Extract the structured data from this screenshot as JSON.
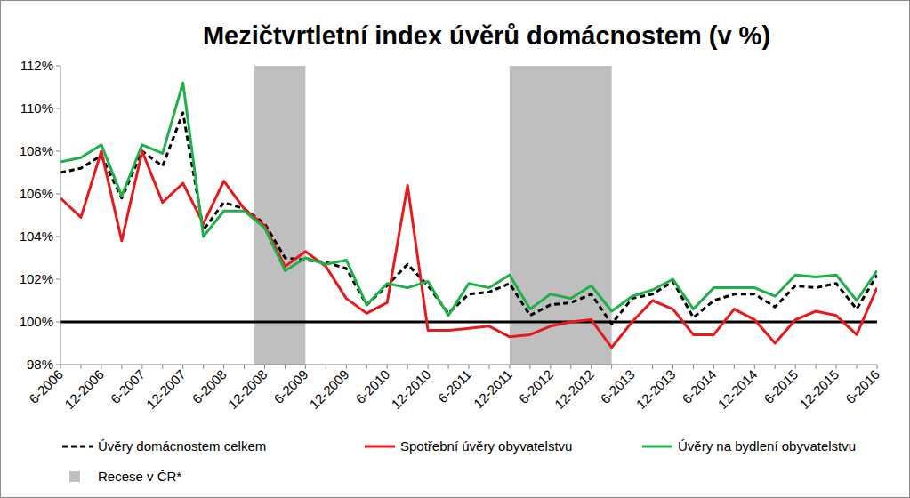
{
  "chart_data": {
    "type": "line",
    "title": "Mezičtvrtletní index úvěrů domácnostem (v %)",
    "categories": [
      "6-2006",
      null,
      "12-2006",
      null,
      "6-2007",
      null,
      "12-2007",
      null,
      "6-2008",
      null,
      "12-2008",
      null,
      "6-2009",
      null,
      "12-2009",
      null,
      "6-2010",
      null,
      "12-2010",
      null,
      "6-2011",
      null,
      "12-2011",
      null,
      "6-2012",
      null,
      "12-2012",
      null,
      "6-2013",
      null,
      "12-2013",
      null,
      "6-2014",
      null,
      "12-2014",
      null,
      "6-2015",
      null,
      "12-2015",
      null,
      "6-2016"
    ],
    "series": [
      {
        "name": "Úvěry domácnostem celkem",
        "color": "#000000",
        "line_style": "dashed",
        "values": [
          107.0,
          107.2,
          107.8,
          105.8,
          108.0,
          107.3,
          109.8,
          104.3,
          105.6,
          105.3,
          104.6,
          103.0,
          102.9,
          102.8,
          102.5,
          100.8,
          101.7,
          102.7,
          101.7,
          100.4,
          101.3,
          101.4,
          101.8,
          100.3,
          100.8,
          100.9,
          101.3,
          99.9,
          101.1,
          101.3,
          101.9,
          100.2,
          101.0,
          101.3,
          101.3,
          100.7,
          101.7,
          101.6,
          101.8,
          100.6,
          102.2
        ]
      },
      {
        "name": "Spotřební úvěry obyvatelstvu",
        "color": "#e8191b",
        "line_style": "solid",
        "values": [
          105.8,
          104.9,
          108.0,
          103.8,
          108.0,
          105.6,
          106.5,
          104.6,
          106.6,
          105.3,
          104.5,
          102.6,
          103.3,
          102.6,
          101.1,
          100.4,
          100.9,
          106.4,
          99.6,
          99.6,
          99.7,
          99.8,
          99.3,
          99.4,
          99.8,
          100.0,
          100.1,
          98.8,
          100.0,
          101.0,
          100.6,
          99.4,
          99.4,
          100.6,
          100.1,
          99.0,
          100.1,
          100.5,
          100.3,
          99.4,
          101.6
        ]
      },
      {
        "name": "Úvěry na bydlení obyvatelstvu",
        "color": "#1fb04a",
        "line_style": "solid",
        "values": [
          107.5,
          107.7,
          108.3,
          105.9,
          108.3,
          107.9,
          111.2,
          104.0,
          105.2,
          105.2,
          104.4,
          102.4,
          103.0,
          102.7,
          102.9,
          100.8,
          101.8,
          101.6,
          101.9,
          100.3,
          101.8,
          101.6,
          102.2,
          100.6,
          101.3,
          101.1,
          101.7,
          100.5,
          101.2,
          101.5,
          102.0,
          100.6,
          101.6,
          101.6,
          101.6,
          101.2,
          102.2,
          102.1,
          102.2,
          101.0,
          102.4
        ]
      }
    ],
    "shaded": {
      "label": "Recese v ČR*",
      "color": "#bfbfbf",
      "ranges": [
        [
          9.5,
          12
        ],
        [
          22,
          27
        ]
      ]
    },
    "reference_line": 100,
    "ylim": [
      98,
      112
    ],
    "yticks": [
      {
        "value": 98,
        "label": "98%"
      },
      {
        "value": 100,
        "label": "100%"
      },
      {
        "value": 102,
        "label": "102%"
      },
      {
        "value": 104,
        "label": "104%"
      },
      {
        "value": 106,
        "label": "106%"
      },
      {
        "value": 108,
        "label": "108%"
      },
      {
        "value": 110,
        "label": "110%"
      },
      {
        "value": 112,
        "label": "112%"
      }
    ],
    "grid": false,
    "legend": "bottom"
  }
}
